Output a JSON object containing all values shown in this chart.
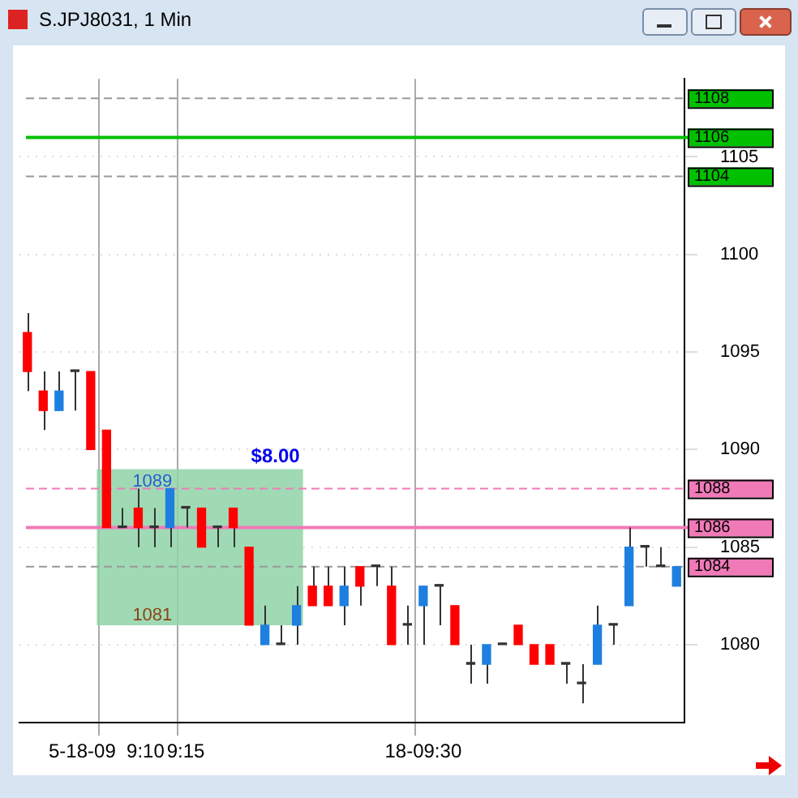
{
  "chart_data": {
    "type": "candlestick",
    "title": "S.JPJ8031, 1 Min",
    "categories": [
      null,
      null,
      null,
      null,
      null,
      "5-18-09  9:10",
      null,
      null,
      null,
      null,
      "9:15",
      null,
      null,
      null,
      null,
      null,
      null,
      null,
      null,
      null,
      null,
      null,
      null,
      null,
      null,
      "18-09:30",
      null,
      null,
      null,
      null,
      null,
      null,
      null,
      null,
      null,
      null,
      null,
      null,
      null,
      null,
      null,
      null
    ],
    "ohlc": [
      [
        1096,
        1097,
        1093,
        1094
      ],
      [
        1093,
        1094,
        1091,
        1092
      ],
      [
        1092,
        1094,
        1092,
        1093
      ],
      [
        1094,
        1094,
        1092,
        1094
      ],
      [
        1094,
        1094,
        1090,
        1090
      ],
      [
        1091,
        1091,
        1086,
        1086
      ],
      [
        1086,
        1087,
        1086,
        1086
      ],
      [
        1087,
        1088,
        1085,
        1086
      ],
      [
        1086,
        1087,
        1085,
        1086
      ],
      [
        1086,
        1088,
        1085,
        1088
      ],
      [
        1087,
        1087,
        1086,
        1087
      ],
      [
        1087,
        1087,
        1085,
        1085
      ],
      [
        1086,
        1086,
        1085,
        1086
      ],
      [
        1087,
        1087,
        1085,
        1086
      ],
      [
        1085,
        1085,
        1081,
        1081
      ],
      [
        1080,
        1082,
        1080,
        1081
      ],
      [
        1080,
        1081,
        1080,
        1080
      ],
      [
        1081,
        1083,
        1080,
        1082
      ],
      [
        1083,
        1084,
        1082,
        1082
      ],
      [
        1083,
        1084,
        1082,
        1082
      ],
      [
        1082,
        1084,
        1081,
        1083
      ],
      [
        1084,
        1084,
        1082,
        1083
      ],
      [
        1084,
        1084,
        1083,
        1084
      ],
      [
        1083,
        1084,
        1080,
        1080
      ],
      [
        1081,
        1082,
        1080,
        1081
      ],
      [
        1082,
        1083,
        1080,
        1083
      ],
      [
        1083,
        1083,
        1081,
        1083
      ],
      [
        1082,
        1082,
        1080,
        1080
      ],
      [
        1079,
        1080,
        1078,
        1079
      ],
      [
        1079,
        1080,
        1078,
        1080
      ],
      [
        1080,
        1080,
        1080,
        1080
      ],
      [
        1081,
        1081,
        1080,
        1080
      ],
      [
        1080,
        1080,
        1079,
        1079
      ],
      [
        1080,
        1080,
        1079,
        1079
      ],
      [
        1079,
        1079,
        1078,
        1079
      ],
      [
        1078,
        1079,
        1077,
        1078
      ],
      [
        1079,
        1082,
        1079,
        1081
      ],
      [
        1081,
        1081,
        1080,
        1081
      ],
      [
        1082,
        1086,
        1082,
        1085
      ],
      [
        1085,
        1085,
        1084,
        1085
      ],
      [
        1084,
        1085,
        1084,
        1084
      ],
      [
        1083,
        1084,
        1083,
        1084
      ]
    ],
    "colors": [
      "#ff0000",
      "#ff0000",
      "#1e7fe0",
      "#333333",
      "#ff0000",
      "#ff0000",
      "#333333",
      "#ff0000",
      "#333333",
      "#1e7fe0",
      "#333333",
      "#ff0000",
      "#333333",
      "#ff0000",
      "#ff0000",
      "#1e7fe0",
      "#333333",
      "#1e7fe0",
      "#ff0000",
      "#ff0000",
      "#1e7fe0",
      "#ff0000",
      "#333333",
      "#ff0000",
      "#333333",
      "#1e7fe0",
      "#333333",
      "#ff0000",
      "#333333",
      "#1e7fe0",
      "#333333",
      "#ff0000",
      "#ff0000",
      "#ff0000",
      "#333333",
      "#333333",
      "#1e7fe0",
      "#333333",
      "#1e7fe0",
      "#333333",
      "#333333",
      "#1e7fe0"
    ],
    "ylim": [
      1076,
      1109
    ],
    "yticks": [
      1080,
      1085,
      1090,
      1095,
      1100,
      1105
    ],
    "grid": true,
    "ref_lines": [
      {
        "axis": "y",
        "value": 1108,
        "label": "1108",
        "color": "#999999",
        "line_style": "dashed"
      },
      {
        "axis": "y",
        "value": 1106,
        "label": "1106",
        "color": "#00c000",
        "line_style": "solid"
      },
      {
        "axis": "y",
        "value": 1104,
        "label": "1104",
        "color": "#999999",
        "line_style": "dashed"
      },
      {
        "axis": "y",
        "value": 1088,
        "label": "1088",
        "color": "#f07ab8",
        "line_style": "dashed"
      },
      {
        "axis": "y",
        "value": 1086,
        "label": "1086",
        "color": "#f07ab8",
        "line_style": "solid"
      },
      {
        "axis": "y",
        "value": 1084,
        "label": "1084",
        "color": "#999999",
        "line_style": "dashed"
      }
    ],
    "bands": [
      {
        "axis": "y",
        "from": 1081,
        "to": 1089,
        "color": "#8fd4a8"
      }
    ],
    "annotations": [
      {
        "text": "$8.00",
        "y": 1089
      },
      {
        "text": "1089",
        "y": 1089
      },
      {
        "text": "1081",
        "y": 1081
      }
    ]
  }
}
